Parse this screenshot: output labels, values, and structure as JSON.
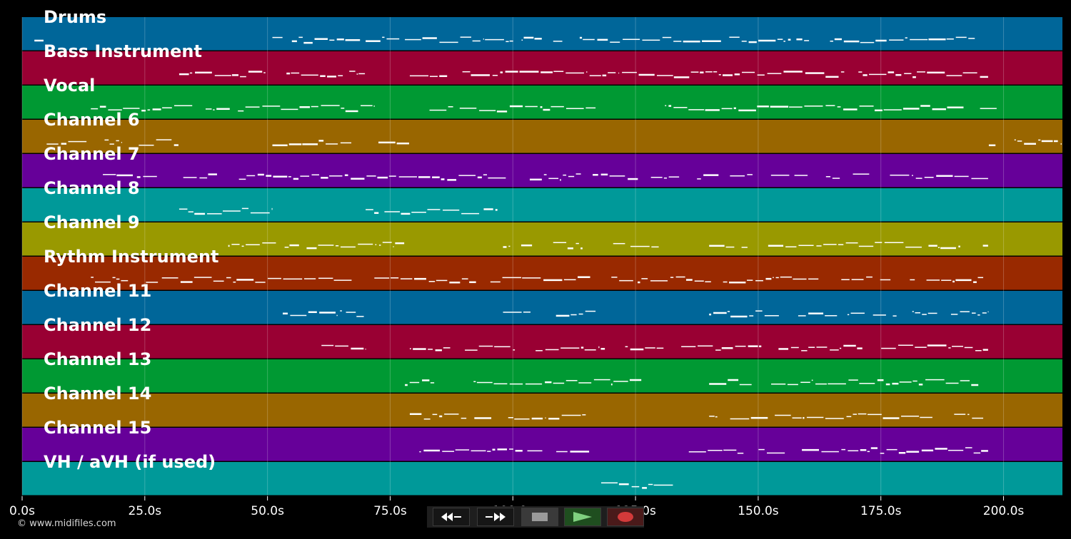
{
  "tracks": [
    {
      "label": "Drums",
      "color": "#006699"
    },
    {
      "label": "Bass Instrument",
      "color": "#990033"
    },
    {
      "label": "Vocal",
      "color": "#009933"
    },
    {
      "label": "Channel 6",
      "color": "#996600"
    },
    {
      "label": "Channel 7",
      "color": "#660099"
    },
    {
      "label": "Channel 8",
      "color": "#009999"
    },
    {
      "label": "Channel 9",
      "color": "#999900"
    },
    {
      "label": "Rythm Instrument",
      "color": "#992900"
    },
    {
      "label": "Channel 11",
      "color": "#006699"
    },
    {
      "label": "Channel 12",
      "color": "#990033"
    },
    {
      "label": "Channel 13",
      "color": "#009933"
    },
    {
      "label": "Channel 14",
      "color": "#996600"
    },
    {
      "label": "Channel 15",
      "color": "#660099"
    },
    {
      "label": "VH / aVH (if used)",
      "color": "#009999"
    }
  ],
  "time_axis": {
    "min": 0,
    "max": 212,
    "ticks": [
      {
        "value": 0,
        "label": "0.0s"
      },
      {
        "value": 25,
        "label": "25.0s"
      },
      {
        "value": 50,
        "label": "50.0s"
      },
      {
        "value": 75,
        "label": "75.0s"
      },
      {
        "value": 100,
        "label": "100.0s"
      },
      {
        "value": 125,
        "label": "125.0s"
      },
      {
        "value": 150,
        "label": "150.0s"
      },
      {
        "value": 175,
        "label": "175.0s"
      },
      {
        "value": 200,
        "label": "200.0s"
      }
    ]
  },
  "note_segments": [
    {
      "track": 0,
      "start": 2.5,
      "end": 4.5
    },
    {
      "track": 0,
      "start": 51,
      "end": 69
    },
    {
      "track": 0,
      "start": 70,
      "end": 77
    },
    {
      "track": 0,
      "start": 78,
      "end": 195
    },
    {
      "track": 1,
      "start": 32,
      "end": 70
    },
    {
      "track": 1,
      "start": 79,
      "end": 197
    },
    {
      "track": 2,
      "start": 14,
      "end": 72
    },
    {
      "track": 2,
      "start": 79,
      "end": 117
    },
    {
      "track": 2,
      "start": 131,
      "end": 199
    },
    {
      "track": 3,
      "start": 5,
      "end": 32
    },
    {
      "track": 3,
      "start": 51,
      "end": 79
    },
    {
      "track": 3,
      "start": 197,
      "end": 212
    },
    {
      "track": 4,
      "start": 14,
      "end": 197
    },
    {
      "track": 5,
      "start": 32,
      "end": 51
    },
    {
      "track": 5,
      "start": 70,
      "end": 97
    },
    {
      "track": 6,
      "start": 42,
      "end": 79
    },
    {
      "track": 6,
      "start": 98,
      "end": 131
    },
    {
      "track": 6,
      "start": 140,
      "end": 197
    },
    {
      "track": 7,
      "start": 14,
      "end": 196
    },
    {
      "track": 8,
      "start": 51,
      "end": 70
    },
    {
      "track": 8,
      "start": 98,
      "end": 117
    },
    {
      "track": 8,
      "start": 140,
      "end": 197
    },
    {
      "track": 9,
      "start": 61,
      "end": 70
    },
    {
      "track": 9,
      "start": 79,
      "end": 197
    },
    {
      "track": 10,
      "start": 78,
      "end": 130
    },
    {
      "track": 10,
      "start": 140,
      "end": 195
    },
    {
      "track": 11,
      "start": 79,
      "end": 115
    },
    {
      "track": 11,
      "start": 140,
      "end": 196
    },
    {
      "track": 12,
      "start": 79,
      "end": 117
    },
    {
      "track": 12,
      "start": 131,
      "end": 197
    },
    {
      "track": 13,
      "start": 118,
      "end": 133
    }
  ],
  "footer": {
    "copyright": "© www.midifiles.com"
  },
  "transport": {
    "rewind_icon": "rewind-icon",
    "forward_icon": "fast-forward-icon",
    "stop_icon": "stop-icon",
    "play_icon": "play-icon",
    "record_icon": "record-icon"
  }
}
